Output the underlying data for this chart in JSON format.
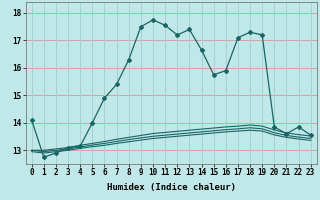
{
  "xlabel": "Humidex (Indice chaleur)",
  "background_color": "#c0e8e8",
  "grid_color_h": "#d8a0a0",
  "grid_color_v": "#a8d0d0",
  "line_color": "#1a6464",
  "x": [
    0,
    1,
    2,
    3,
    4,
    5,
    6,
    7,
    8,
    9,
    10,
    11,
    12,
    13,
    14,
    15,
    16,
    17,
    18,
    19,
    20,
    21,
    22,
    23
  ],
  "line1": [
    14.1,
    12.75,
    12.9,
    13.1,
    13.15,
    14.0,
    14.9,
    15.4,
    16.3,
    17.5,
    17.75,
    17.55,
    17.2,
    17.4,
    16.65,
    15.75,
    15.9,
    17.1,
    17.3,
    17.2,
    13.85,
    13.6,
    13.85,
    13.55
  ],
  "line2": [
    13.0,
    13.0,
    13.05,
    13.1,
    13.18,
    13.25,
    13.32,
    13.4,
    13.47,
    13.54,
    13.61,
    13.65,
    13.69,
    13.73,
    13.77,
    13.81,
    13.85,
    13.88,
    13.92,
    13.88,
    13.74,
    13.63,
    13.57,
    13.52
  ],
  "line3": [
    13.0,
    12.95,
    13.0,
    13.05,
    13.12,
    13.19,
    13.25,
    13.32,
    13.39,
    13.45,
    13.51,
    13.55,
    13.59,
    13.63,
    13.67,
    13.71,
    13.75,
    13.78,
    13.82,
    13.78,
    13.64,
    13.54,
    13.48,
    13.43
  ],
  "line4": [
    12.95,
    12.9,
    12.95,
    13.0,
    13.07,
    13.13,
    13.18,
    13.25,
    13.31,
    13.37,
    13.43,
    13.47,
    13.51,
    13.55,
    13.59,
    13.63,
    13.67,
    13.7,
    13.73,
    13.7,
    13.56,
    13.47,
    13.41,
    13.36
  ],
  "ylim": [
    12.5,
    18.4
  ],
  "yticks": [
    13,
    14,
    15,
    16,
    17,
    18
  ],
  "xticks": [
    0,
    1,
    2,
    3,
    4,
    5,
    6,
    7,
    8,
    9,
    10,
    11,
    12,
    13,
    14,
    15,
    16,
    17,
    18,
    19,
    20,
    21,
    22,
    23
  ],
  "label_fontsize": 6.5,
  "tick_fontsize": 5.5
}
